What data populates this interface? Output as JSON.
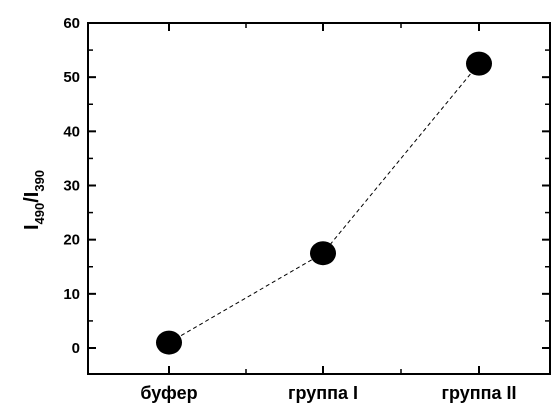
{
  "chart_data": {
    "type": "scatter",
    "categories": [
      "буфер",
      "группа I",
      "группа II"
    ],
    "series": [
      {
        "values": [
          1,
          17.5,
          52.5
        ]
      }
    ],
    "ylabel": {
      "main": "I",
      "sub1": "490",
      "slash": "/I",
      "sub2": "390"
    },
    "ylim": [
      0,
      60
    ],
    "yticks": [
      0,
      10,
      20,
      30,
      40,
      50,
      60
    ],
    "grid": false,
    "connector": "dashed",
    "marker_color": "#000000"
  }
}
